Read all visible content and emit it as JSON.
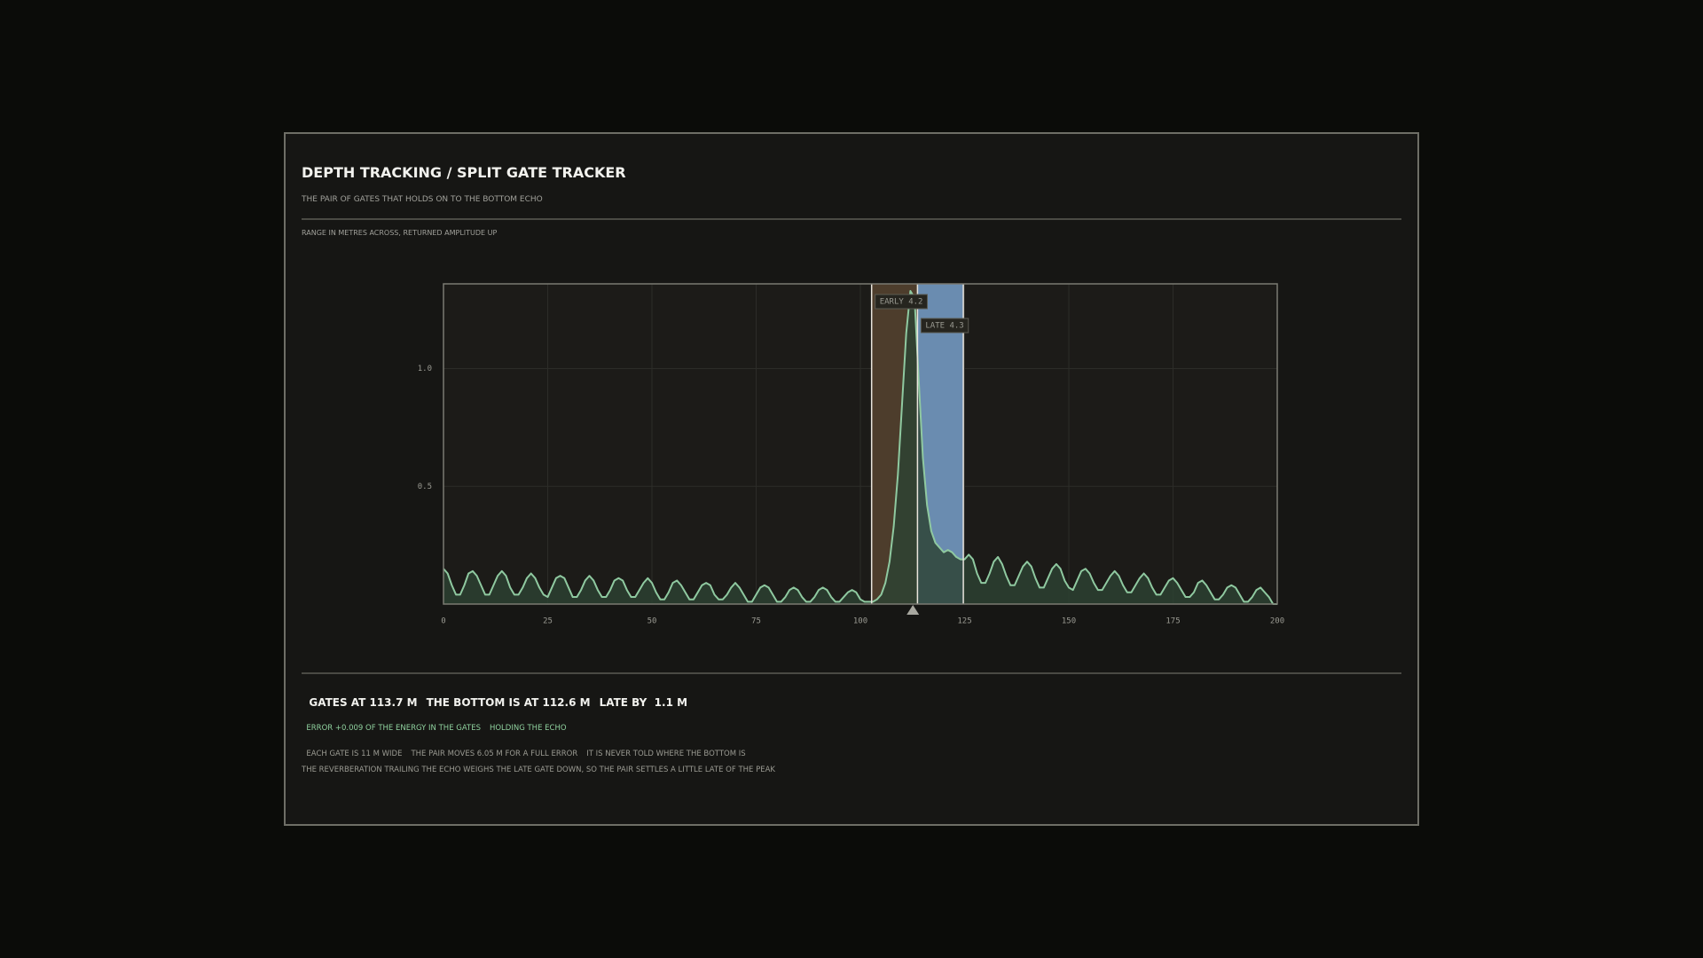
{
  "header": {
    "title": "DEPTH TRACKING / SPLIT GATE TRACKER",
    "subtitle": "THE PAIR OF GATES THAT HOLDS ON TO THE BOTTOM ECHO"
  },
  "chart_data": {
    "type": "area",
    "axis_note": "RANGE IN METRES ACROSS, RETURNED AMPLITUDE UP",
    "x": [
      0,
      1,
      2,
      3,
      4,
      5,
      6,
      7,
      8,
      9,
      10,
      11,
      12,
      13,
      14,
      15,
      16,
      17,
      18,
      19,
      20,
      21,
      22,
      23,
      24,
      25,
      26,
      27,
      28,
      29,
      30,
      31,
      32,
      33,
      34,
      35,
      36,
      37,
      38,
      39,
      40,
      41,
      42,
      43,
      44,
      45,
      46,
      47,
      48,
      49,
      50,
      51,
      52,
      53,
      54,
      55,
      56,
      57,
      58,
      59,
      60,
      61,
      62,
      63,
      64,
      65,
      66,
      67,
      68,
      69,
      70,
      71,
      72,
      73,
      74,
      75,
      76,
      77,
      78,
      79,
      80,
      81,
      82,
      83,
      84,
      85,
      86,
      87,
      88,
      89,
      90,
      91,
      92,
      93,
      94,
      95,
      96,
      97,
      98,
      99,
      100,
      101,
      102,
      103,
      104,
      105,
      106,
      107,
      108,
      109,
      110,
      111,
      112,
      113,
      114,
      115,
      116,
      117,
      118,
      119,
      120,
      121,
      122,
      123,
      124,
      125,
      126,
      127,
      128,
      129,
      130,
      131,
      132,
      133,
      134,
      135,
      136,
      137,
      138,
      139,
      140,
      141,
      142,
      143,
      144,
      145,
      146,
      147,
      148,
      149,
      150,
      151,
      152,
      153,
      154,
      155,
      156,
      157,
      158,
      159,
      160,
      161,
      162,
      163,
      164,
      165,
      166,
      167,
      168,
      169,
      170,
      171,
      172,
      173,
      174,
      175,
      176,
      177,
      178,
      179,
      180,
      181,
      182,
      183,
      184,
      185,
      186,
      187,
      188,
      189,
      190,
      191,
      192,
      193,
      194,
      195,
      196,
      197,
      198,
      199,
      200
    ],
    "values": [
      0.15,
      0.13,
      0.08,
      0.04,
      0.04,
      0.08,
      0.13,
      0.14,
      0.12,
      0.08,
      0.04,
      0.04,
      0.08,
      0.12,
      0.14,
      0.12,
      0.07,
      0.04,
      0.04,
      0.07,
      0.11,
      0.13,
      0.11,
      0.07,
      0.04,
      0.03,
      0.07,
      0.11,
      0.12,
      0.11,
      0.07,
      0.03,
      0.03,
      0.06,
      0.1,
      0.12,
      0.1,
      0.06,
      0.03,
      0.03,
      0.06,
      0.1,
      0.11,
      0.1,
      0.06,
      0.03,
      0.03,
      0.06,
      0.09,
      0.11,
      0.09,
      0.05,
      0.02,
      0.02,
      0.05,
      0.09,
      0.1,
      0.08,
      0.05,
      0.02,
      0.02,
      0.05,
      0.08,
      0.09,
      0.08,
      0.04,
      0.02,
      0.02,
      0.04,
      0.07,
      0.09,
      0.07,
      0.04,
      0.01,
      0.01,
      0.04,
      0.07,
      0.08,
      0.07,
      0.04,
      0.01,
      0.01,
      0.03,
      0.06,
      0.07,
      0.06,
      0.03,
      0.01,
      0.01,
      0.03,
      0.06,
      0.07,
      0.06,
      0.03,
      0.01,
      0.01,
      0.03,
      0.05,
      0.06,
      0.05,
      0.02,
      0.01,
      0.01,
      0.01,
      0.02,
      0.04,
      0.09,
      0.18,
      0.33,
      0.55,
      0.85,
      1.15,
      1.33,
      1.3,
      0.95,
      0.62,
      0.42,
      0.31,
      0.26,
      0.24,
      0.22,
      0.23,
      0.22,
      0.2,
      0.19,
      0.19,
      0.21,
      0.19,
      0.13,
      0.09,
      0.09,
      0.13,
      0.18,
      0.2,
      0.17,
      0.12,
      0.08,
      0.08,
      0.12,
      0.16,
      0.18,
      0.16,
      0.11,
      0.07,
      0.07,
      0.11,
      0.15,
      0.17,
      0.15,
      0.1,
      0.07,
      0.06,
      0.1,
      0.14,
      0.15,
      0.13,
      0.09,
      0.06,
      0.06,
      0.09,
      0.12,
      0.14,
      0.12,
      0.08,
      0.05,
      0.05,
      0.08,
      0.11,
      0.13,
      0.11,
      0.07,
      0.04,
      0.04,
      0.07,
      0.1,
      0.11,
      0.09,
      0.06,
      0.03,
      0.03,
      0.05,
      0.09,
      0.1,
      0.08,
      0.05,
      0.02,
      0.02,
      0.04,
      0.07,
      0.08,
      0.07,
      0.04,
      0.01,
      0.01,
      0.03,
      0.06,
      0.07,
      0.05,
      0.03,
      0,
      0
    ],
    "color": "#8fc9a0",
    "xlim": [
      0,
      200
    ],
    "ylim": [
      0,
      1.36
    ],
    "xticks": [
      0,
      25,
      50,
      75,
      100,
      125,
      150,
      175,
      200
    ],
    "yticks": [
      0.5,
      {
        "value": 1,
        "label": "1.0"
      }
    ],
    "grid": true,
    "gate_center": 113.7,
    "gate_width": 11,
    "gate_labels": [
      "EARLY 4.2",
      "LATE 4.3"
    ],
    "gate_colors": [
      "#4d3d2c",
      "#6a8cb0"
    ],
    "bottom": 112.6
  },
  "readout": {
    "status": [
      "GATES AT 113.7 M",
      "THE BOTTOM IS AT 112.6 M",
      "LATE BY  1.1 M"
    ],
    "error": [
      "ERROR +0.009 OF THE ENERGY IN THE GATES",
      "HOLDING THE ECHO"
    ],
    "notes": [
      "EACH GATE IS 11 M WIDE",
      "THE PAIR MOVES 6.05 M FOR A FULL ERROR",
      "IT IS NEVER TOLD WHERE THE BOTTOM IS"
    ],
    "explanation": "THE REVERBERATION TRAILING THE ECHO WEIGHS THE LATE GATE DOWN, SO THE PAIR SETTLES A LITTLE LATE OF THE PEAK"
  }
}
